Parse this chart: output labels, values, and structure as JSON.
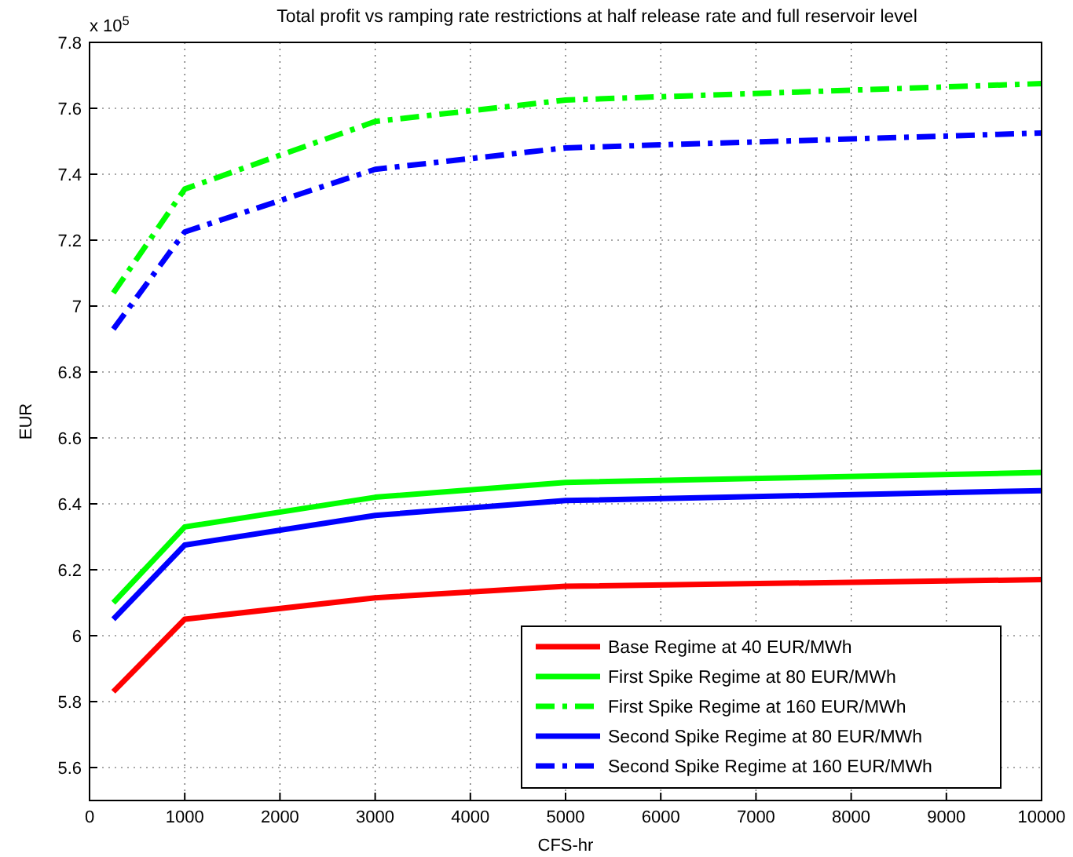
{
  "chart_data": {
    "type": "line",
    "title": "Total profit vs ramping rate restrictions at half release rate and full reservoir level",
    "xlabel": "CFS-hr",
    "ylabel": "EUR",
    "annotations": [
      "x 10$^{5}$"
    ],
    "x": [
      250,
      1000,
      3000,
      5000,
      10000
    ],
    "series": [
      {
        "name": "Base Regime at 40 EUR/MWh",
        "color": "#ff0000",
        "line_style": "solid",
        "values": [
          5.83,
          6.05,
          6.115,
          6.15,
          6.17
        ]
      },
      {
        "name": "First Spike Regime at 80 EUR/MWh",
        "color": "#00ff00",
        "line_style": "solid",
        "values": [
          6.1,
          6.33,
          6.42,
          6.465,
          6.495
        ]
      },
      {
        "name": "First Spike Regime at 160 EUR/MWh",
        "color": "#00ff00",
        "line_style": "dashed",
        "values": [
          7.04,
          7.355,
          7.56,
          7.625,
          7.675
        ]
      },
      {
        "name": "Second Spike Regime at 80 EUR/MWh",
        "color": "#0000ff",
        "line_style": "solid",
        "values": [
          6.05,
          6.275,
          6.365,
          6.41,
          6.44
        ]
      },
      {
        "name": "Second Spike Regime at 160 EUR/MWh",
        "color": "#0000ff",
        "line_style": "dashed",
        "values": [
          6.93,
          7.225,
          7.415,
          7.48,
          7.525
        ]
      }
    ],
    "xlim": [
      0,
      10000
    ],
    "xticks": [
      0,
      1000,
      2000,
      3000,
      4000,
      5000,
      6000,
      7000,
      8000,
      9000,
      10000
    ],
    "ylim": [
      5.5,
      7.8
    ],
    "yticks": [
      5.6,
      5.8,
      6,
      6.2,
      6.4,
      6.6,
      6.8,
      7,
      7.2,
      7.4,
      7.6,
      7.8
    ],
    "grid": true,
    "legend": "bottom right",
    "marker": "none"
  }
}
